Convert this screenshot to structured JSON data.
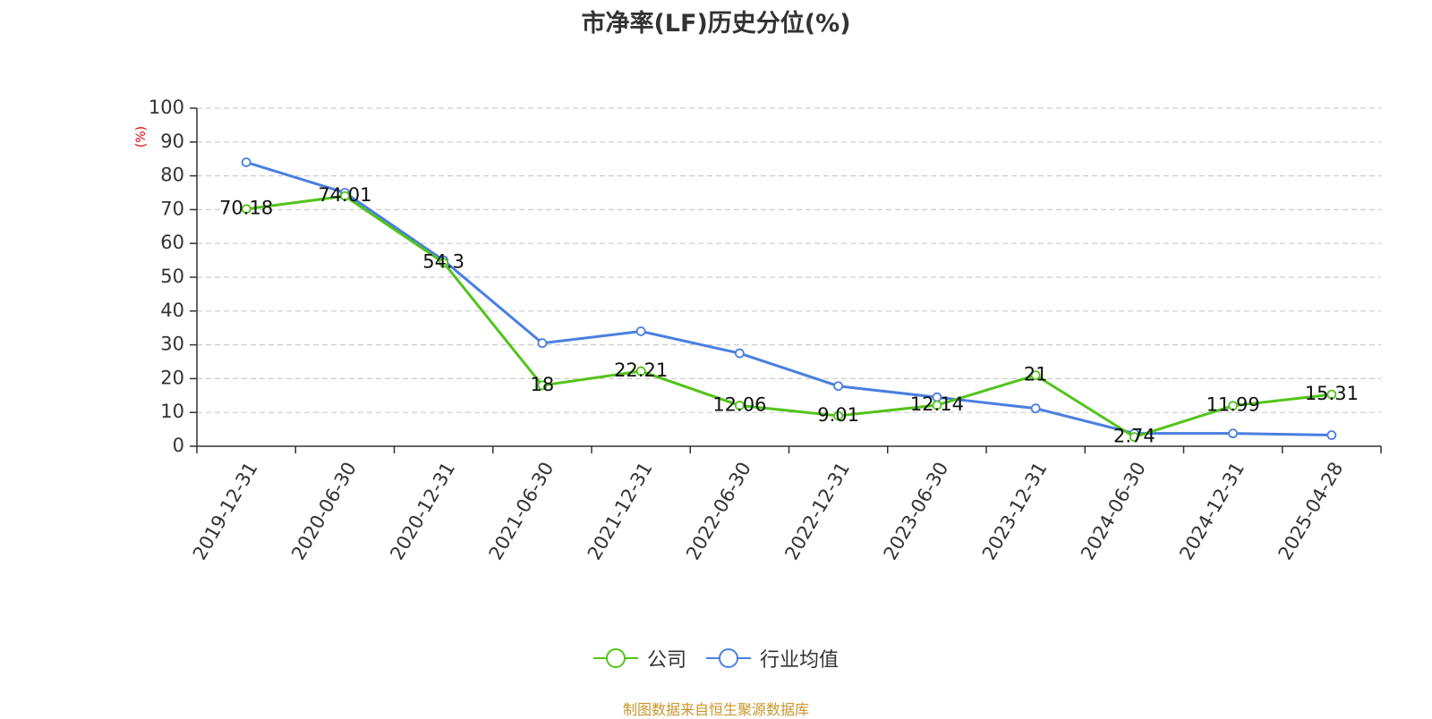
{
  "chart_data": {
    "type": "line",
    "title": "市净率(LF)历史分位(%)",
    "ylabel": "(%)",
    "ylim": [
      0,
      100
    ],
    "yticks": [
      0,
      10,
      20,
      30,
      40,
      50,
      60,
      70,
      80,
      90,
      100
    ],
    "grid": true,
    "legend_position": "bottom-center",
    "categories": [
      "2019-12-31",
      "2020-06-30",
      "2020-12-31",
      "2021-06-30",
      "2021-12-31",
      "2022-06-30",
      "2022-12-31",
      "2023-06-30",
      "2023-12-31",
      "2024-06-30",
      "2024-12-31",
      "2025-04-28"
    ],
    "series": [
      {
        "name": "公司",
        "color": "#52c41a",
        "values": [
          70.18,
          74.01,
          54.3,
          18,
          22.21,
          12.06,
          9.01,
          12.14,
          21,
          2.74,
          11.99,
          15.31
        ],
        "labels": [
          "70.18",
          "74.01",
          "54.3",
          "18",
          "22.21",
          "12.06",
          "9.01",
          "12.14",
          "21",
          "2.74",
          "11.99",
          "15.31"
        ]
      },
      {
        "name": "行业均值",
        "color": "#4a7fe0",
        "values": [
          84,
          75,
          55,
          30.5,
          34,
          27.5,
          17.8,
          14.5,
          11.2,
          3.8,
          3.8,
          3.3
        ]
      }
    ]
  },
  "footer": {
    "source": "制图数据来自恒生聚源数据库"
  }
}
